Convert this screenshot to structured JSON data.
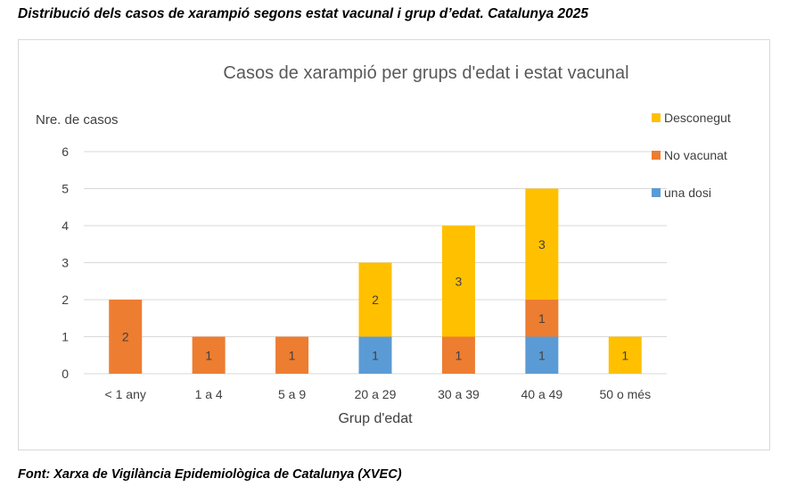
{
  "page_title": "Distribució dels casos de xarampió segons estat vacunal i grup d’edat. Catalunya 2025",
  "source": "Font: Xarxa de Vigilància Epidemiològica de Catalunya (XVEC)",
  "chart_data": {
    "type": "bar",
    "stacked": true,
    "title": "Casos de xarampió per grups d'edat i estat vacunal",
    "xlabel": "Grup d'edat",
    "ylabel": "Nre. de casos",
    "ylim": [
      0,
      6
    ],
    "yticks": [
      0,
      1,
      2,
      3,
      4,
      5,
      6
    ],
    "grid": true,
    "legend_position": "top-right",
    "categories": [
      "< 1 any",
      "1 a 4",
      "5 a 9",
      "20 a 29",
      "30 a 39",
      "40 a 49",
      "50 o més"
    ],
    "series": [
      {
        "name": "una dosi",
        "color": "#5b9bd5",
        "values": [
          0,
          0,
          0,
          1,
          0,
          1,
          0
        ]
      },
      {
        "name": "No vacunat",
        "color": "#ed7d31",
        "values": [
          2,
          1,
          1,
          0,
          1,
          1,
          0
        ]
      },
      {
        "name": "Desconegut",
        "color": "#ffc000",
        "values": [
          0,
          0,
          0,
          2,
          3,
          3,
          1
        ]
      }
    ],
    "legend_order": [
      "Desconegut",
      "No vacunat",
      "una dosi"
    ]
  }
}
